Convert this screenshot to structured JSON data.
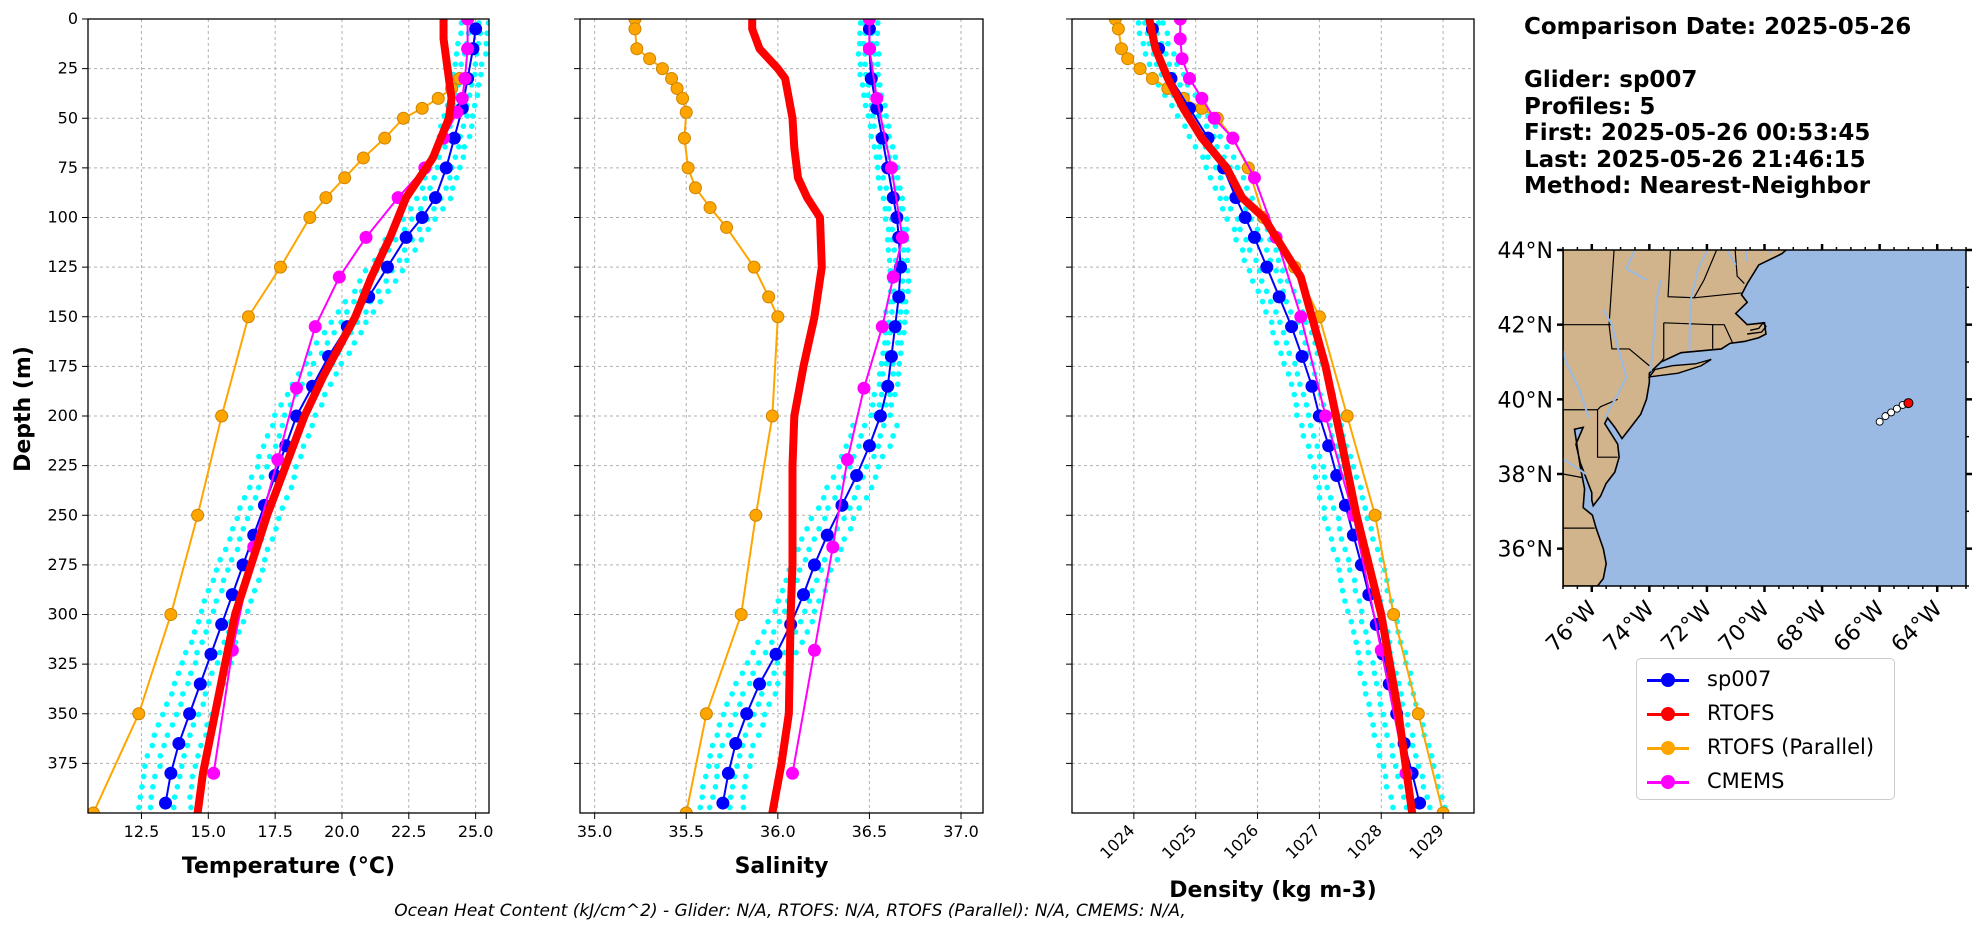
{
  "info": {
    "comparison_date": "Comparison Date: 2025-05-26",
    "glider": "Glider: sp007",
    "profiles": "Profiles: 5",
    "first": "First: 2025-05-26 00:53:45",
    "last": "Last: 2025-05-26 21:46:15",
    "method": "Method: Nearest-Neighbor"
  },
  "footer": "Ocean Heat Content (kJ/cm^2) - Glider: N/A,  RTOFS: N/A,  RTOFS (Parallel): N/A,  CMEMS: N/A,",
  "legend": [
    {
      "label": "sp007",
      "color": "#0000ff"
    },
    {
      "label": "RTOFS",
      "color": "#ff0000"
    },
    {
      "label": "RTOFS (Parallel)",
      "color": "#ffa500"
    },
    {
      "label": "CMEMS",
      "color": "#ff00ff"
    }
  ],
  "colors": {
    "glider": "#0000ff",
    "rtofs": "#ff0000",
    "parallel": "#ffa500",
    "cmems": "#ff00ff",
    "profiles": "#00ffff",
    "land": "#d2b48c",
    "ocean": "#9ab9e3"
  },
  "chart_data": [
    {
      "type": "line",
      "xlabel": "Temperature (°C)",
      "ylabel": "Depth (m)",
      "xlim": [
        10.5,
        25.5
      ],
      "ylim": [
        400,
        0
      ],
      "xticks": [
        12.5,
        15.0,
        17.5,
        20.0,
        22.5,
        25.0
      ],
      "yticks": [
        0,
        25,
        50,
        75,
        100,
        125,
        150,
        175,
        200,
        225,
        250,
        275,
        300,
        325,
        350,
        375
      ],
      "grid": true,
      "series": [
        {
          "name": "sp007",
          "x": [
            25.0,
            24.9,
            24.7,
            24.5,
            24.2,
            23.9,
            23.5,
            23.0,
            22.4,
            21.7,
            21.0,
            20.2,
            19.5,
            18.9,
            18.3,
            17.9,
            17.5,
            17.1,
            16.7,
            16.3,
            15.9,
            15.5,
            15.1,
            14.7,
            14.3,
            13.9,
            13.6,
            13.4
          ],
          "y": [
            5,
            15,
            30,
            45,
            60,
            75,
            90,
            100,
            110,
            125,
            140,
            155,
            170,
            185,
            200,
            215,
            230,
            245,
            260,
            275,
            290,
            305,
            320,
            335,
            350,
            365,
            380,
            395
          ]
        },
        {
          "name": "RTOFS",
          "x": [
            23.8,
            23.8,
            23.9,
            24.0,
            24.1,
            24.0,
            23.4,
            22.4,
            21.8,
            21.1,
            20.5,
            19.9,
            19.3,
            18.6,
            17.9,
            17.2,
            16.6,
            16.0,
            15.4,
            14.8,
            14.6
          ],
          "y": [
            0,
            10,
            20,
            30,
            40,
            50,
            70,
            90,
            110,
            130,
            150,
            165,
            180,
            200,
            225,
            250,
            275,
            300,
            340,
            380,
            400
          ]
        },
        {
          "name": "RTOFS (Parallel)",
          "x": [
            24.4,
            24.1,
            23.6,
            23.0,
            22.3,
            21.6,
            20.8,
            20.1,
            19.4,
            18.8,
            17.7,
            16.5,
            15.5,
            14.6,
            13.6,
            12.4,
            10.7
          ],
          "y": [
            30,
            35,
            40,
            45,
            50,
            60,
            70,
            80,
            90,
            100,
            125,
            150,
            200,
            250,
            300,
            350,
            400
          ]
        },
        {
          "name": "CMEMS",
          "x": [
            24.7,
            24.7,
            24.6,
            24.5,
            24.3,
            23.8,
            23.1,
            22.1,
            20.9,
            19.9,
            19.0,
            18.3,
            17.6,
            16.7,
            15.9,
            15.2
          ],
          "y": [
            0,
            15,
            30,
            40,
            47,
            60,
            75,
            90,
            110,
            130,
            155,
            186,
            222,
            266,
            318,
            380
          ]
        }
      ]
    },
    {
      "type": "line",
      "xlabel": "Salinity",
      "ylabel": "",
      "xlim": [
        34.92,
        37.12
      ],
      "ylim": [
        400,
        0
      ],
      "xticks": [
        35.0,
        35.5,
        36.0,
        36.5,
        37.0
      ],
      "yticks": [
        0,
        25,
        50,
        75,
        100,
        125,
        150,
        175,
        200,
        225,
        250,
        275,
        300,
        325,
        350,
        375
      ],
      "grid": true,
      "series": [
        {
          "name": "sp007",
          "x": [
            36.5,
            36.5,
            36.51,
            36.54,
            36.57,
            36.6,
            36.63,
            36.65,
            36.66,
            36.67,
            36.66,
            36.64,
            36.62,
            36.6,
            36.56,
            36.5,
            36.43,
            36.35,
            36.27,
            36.2,
            36.14,
            36.07,
            35.99,
            35.9,
            35.83,
            35.77,
            35.73,
            35.7
          ],
          "y": [
            5,
            15,
            30,
            45,
            60,
            75,
            90,
            100,
            110,
            125,
            140,
            155,
            170,
            185,
            200,
            215,
            230,
            245,
            260,
            275,
            290,
            305,
            320,
            335,
            350,
            365,
            380,
            395
          ]
        },
        {
          "name": "RTOFS",
          "x": [
            35.86,
            35.86,
            35.9,
            36.0,
            36.04,
            36.06,
            36.08,
            36.09,
            36.11,
            36.16,
            36.23,
            36.24,
            36.2,
            36.14,
            36.09,
            36.08,
            36.08,
            36.08,
            36.07,
            36.06,
            36.02,
            35.97
          ],
          "y": [
            0,
            5,
            15,
            25,
            30,
            40,
            50,
            65,
            80,
            90,
            100,
            125,
            150,
            175,
            200,
            225,
            250,
            275,
            300,
            350,
            375,
            400
          ]
        },
        {
          "name": "RTOFS (Parallel)",
          "x": [
            35.22,
            35.22,
            35.23,
            35.3,
            35.37,
            35.42,
            35.45,
            35.48,
            35.5,
            35.49,
            35.51,
            35.55,
            35.63,
            35.72,
            35.87,
            35.95,
            36.0,
            35.97,
            35.88,
            35.8,
            35.61,
            35.5
          ],
          "y": [
            0,
            5,
            15,
            20,
            25,
            30,
            35,
            40,
            47,
            60,
            75,
            85,
            95,
            105,
            125,
            140,
            150,
            200,
            250,
            300,
            350,
            400
          ]
        },
        {
          "name": "CMEMS",
          "x": [
            36.5,
            36.5,
            36.54,
            36.62,
            36.68,
            36.63,
            36.57,
            36.47,
            36.38,
            36.3,
            36.2,
            36.08
          ],
          "y": [
            0,
            15,
            40,
            75,
            110,
            130,
            155,
            186,
            222,
            266,
            318,
            380
          ]
        }
      ]
    },
    {
      "type": "line",
      "xlabel": "Density (kg m-3)",
      "ylabel": "",
      "xlim": [
        1023.0,
        1029.5
      ],
      "ylim": [
        400,
        0
      ],
      "xticks": [
        1024,
        1025,
        1026,
        1027,
        1028,
        1029
      ],
      "yticks": [
        0,
        25,
        50,
        75,
        100,
        125,
        150,
        175,
        200,
        225,
        250,
        275,
        300,
        325,
        350,
        375
      ],
      "grid": true,
      "series": [
        {
          "name": "sp007",
          "x": [
            1024.3,
            1024.4,
            1024.6,
            1024.9,
            1025.2,
            1025.45,
            1025.65,
            1025.8,
            1025.95,
            1026.15,
            1026.35,
            1026.55,
            1026.72,
            1026.88,
            1027.0,
            1027.15,
            1027.28,
            1027.42,
            1027.55,
            1027.68,
            1027.8,
            1027.92,
            1028.03,
            1028.13,
            1028.25,
            1028.37,
            1028.5,
            1028.62
          ],
          "y": [
            5,
            15,
            30,
            45,
            60,
            75,
            90,
            100,
            110,
            125,
            140,
            155,
            170,
            185,
            200,
            215,
            230,
            245,
            260,
            275,
            290,
            305,
            320,
            335,
            350,
            365,
            380,
            395
          ]
        },
        {
          "name": "RTOFS",
          "x": [
            1024.25,
            1024.35,
            1024.55,
            1024.8,
            1025.1,
            1025.5,
            1025.75,
            1026.1,
            1026.7,
            1027.1,
            1027.35,
            1027.6,
            1027.8,
            1028.0,
            1028.28,
            1028.5
          ],
          "y": [
            0,
            15,
            30,
            45,
            60,
            75,
            90,
            100,
            130,
            175,
            212,
            250,
            275,
            300,
            350,
            400
          ]
        },
        {
          "name": "RTOFS (Parallel)",
          "x": [
            1023.7,
            1023.75,
            1023.8,
            1023.9,
            1024.1,
            1024.3,
            1024.55,
            1024.8,
            1025.1,
            1025.35,
            1025.6,
            1025.85,
            1026.1,
            1026.6,
            1027.0,
            1027.45,
            1027.9,
            1028.2,
            1028.6,
            1029.0
          ],
          "y": [
            0,
            5,
            15,
            20,
            25,
            30,
            35,
            40,
            45,
            50,
            60,
            75,
            100,
            125,
            150,
            200,
            250,
            300,
            350,
            400
          ]
        },
        {
          "name": "CMEMS",
          "x": [
            1024.75,
            1024.75,
            1024.78,
            1024.9,
            1025.1,
            1025.3,
            1025.6,
            1025.95,
            1026.3,
            1026.7,
            1027.1,
            1027.55,
            1028.0,
            1028.4
          ],
          "y": [
            0,
            10,
            20,
            30,
            40,
            50,
            60,
            80,
            110,
            150,
            200,
            250,
            318,
            380
          ]
        }
      ]
    }
  ],
  "map": {
    "lon_ticks": [
      "76°W",
      "74°W",
      "72°W",
      "70°W",
      "68°W",
      "66°W",
      "64°W"
    ],
    "lat_ticks": [
      "44°N",
      "42°N",
      "40°N",
      "38°N",
      "36°N"
    ],
    "lon_values": [
      -76,
      -74,
      -72,
      -70,
      -68,
      -66,
      -64
    ],
    "lat_values": [
      44,
      42,
      40,
      38,
      36
    ],
    "extent": {
      "lon": [
        -77,
        -63
      ],
      "lat": [
        35,
        44
      ]
    },
    "glider_track": [
      {
        "lon": -66.0,
        "lat": 39.4
      },
      {
        "lon": -65.8,
        "lat": 39.55
      },
      {
        "lon": -65.6,
        "lat": 39.65
      },
      {
        "lon": -65.4,
        "lat": 39.75
      },
      {
        "lon": -65.2,
        "lat": 39.85
      }
    ],
    "last_position": {
      "lon": -65.0,
      "lat": 39.9
    }
  }
}
